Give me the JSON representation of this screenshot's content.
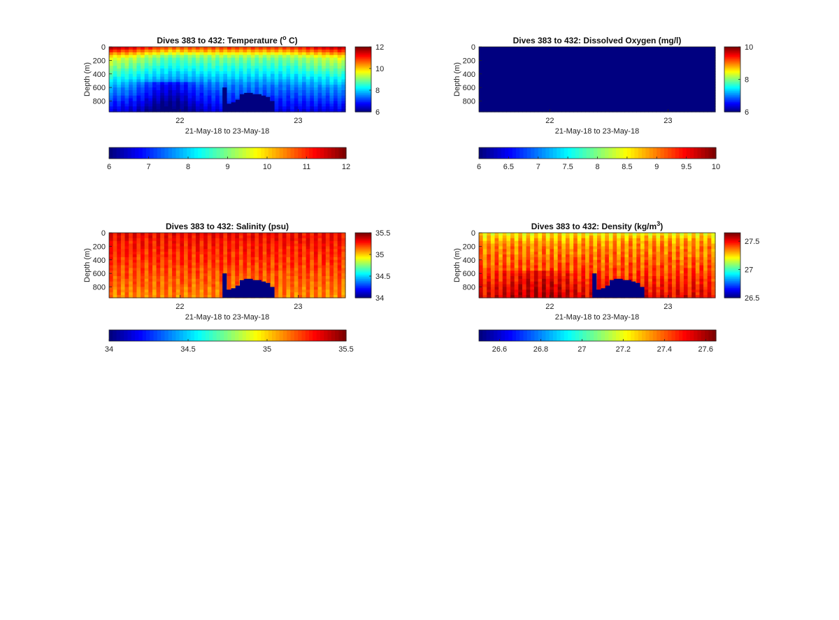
{
  "colormap": "jet",
  "mask_color": "#000080",
  "chart_data": [
    {
      "id": "temperature",
      "type": "heatmap",
      "title": "Dives 383 to 432: Temperature (",
      "title_sup": "o",
      "title_suffix": " C)",
      "xlabel": "21-May-18 to 23-May-18",
      "ylabel": "Depth (m)",
      "x_ticks": [
        "22",
        "23"
      ],
      "y_ticks": [
        "0",
        "200",
        "400",
        "600",
        "800"
      ],
      "ylim": [
        0,
        960
      ],
      "xlim_days": [
        21.4,
        23.4
      ],
      "clim": [
        6,
        12
      ],
      "colorbar_right_ticks": [
        "6",
        "8",
        "10",
        "12"
      ],
      "colorbar_right_values": [
        6,
        8,
        10,
        12
      ],
      "colorbar_bottom_ticks": [
        "6",
        "7",
        "8",
        "9",
        "10",
        "11",
        "12"
      ],
      "colorbar_bottom_values": [
        6,
        7,
        8,
        9,
        10,
        11,
        12
      ],
      "field": {
        "surface": 10.8,
        "mid": 9.0,
        "deep": 7.5,
        "bottom": 6.6,
        "warm_edges": 0.8,
        "stripe": 0.15
      }
    },
    {
      "id": "oxygen",
      "type": "heatmap",
      "title": "Dives 383 to 432: Dissolved Oxygen (mg/l)",
      "title_sup": "",
      "title_suffix": "",
      "xlabel": "21-May-18 to 23-May-18",
      "ylabel": "Depth (m)",
      "x_ticks": [
        "22",
        "23"
      ],
      "y_ticks": [
        "0",
        "200",
        "400",
        "600",
        "800"
      ],
      "ylim": [
        0,
        960
      ],
      "xlim_days": [
        21.4,
        23.4
      ],
      "clim": [
        6,
        10
      ],
      "colorbar_right_ticks": [
        "6",
        "8",
        "10"
      ],
      "colorbar_right_values": [
        6,
        8,
        10
      ],
      "colorbar_bottom_ticks": [
        "6",
        "6.5",
        "7",
        "7.5",
        "8",
        "8.5",
        "9",
        "9.5",
        "10"
      ],
      "colorbar_bottom_values": [
        6,
        6.5,
        7,
        7.5,
        8,
        8.5,
        9,
        9.5,
        10
      ],
      "uniform_value": 6
    },
    {
      "id": "salinity",
      "type": "heatmap",
      "title": "Dives 383 to 432: Salinity (psu)",
      "title_sup": "",
      "title_suffix": "",
      "xlabel": "21-May-18 to 23-May-18",
      "ylabel": "Depth (m)",
      "x_ticks": [
        "22",
        "23"
      ],
      "y_ticks": [
        "0",
        "200",
        "400",
        "600",
        "800"
      ],
      "ylim": [
        0,
        960
      ],
      "xlim_days": [
        21.4,
        23.4
      ],
      "clim": [
        34,
        35.5
      ],
      "colorbar_right_ticks": [
        "34",
        "34.5",
        "35",
        "35.5"
      ],
      "colorbar_right_values": [
        34,
        34.5,
        35,
        35.5
      ],
      "colorbar_bottom_ticks": [
        "34",
        "34.5",
        "35",
        "35.5"
      ],
      "colorbar_bottom_values": [
        34,
        34.5,
        35,
        35.5
      ],
      "field": {
        "surface": 35.32,
        "mid": 35.28,
        "deep": 35.2,
        "bottom": 35.12,
        "warm_edges": 0.0,
        "stripe": 0.06
      }
    },
    {
      "id": "density",
      "type": "heatmap",
      "title": "Dives 383 to 432: Density (kg/m",
      "title_sup": "3",
      "title_suffix": ")",
      "xlabel": "21-May-18 to 23-May-18",
      "ylabel": "Depth (m)",
      "x_ticks": [
        "22",
        "23"
      ],
      "y_ticks": [
        "0",
        "200",
        "400",
        "600",
        "800"
      ],
      "ylim": [
        0,
        960
      ],
      "xlim_days": [
        21.4,
        23.4
      ],
      "clim": [
        26.5,
        27.65
      ],
      "colorbar_right_ticks": [
        "26.5",
        "27",
        "27.5"
      ],
      "colorbar_right_values": [
        26.5,
        27,
        27.5
      ],
      "colorbar_bottom_ticks": [
        "26.6",
        "26.8",
        "27",
        "27.2",
        "27.4",
        "27.6"
      ],
      "colorbar_bottom_values": [
        26.6,
        26.8,
        27,
        27.2,
        27.4,
        27.6
      ],
      "field": {
        "surface": 27.24,
        "mid": 27.34,
        "deep": 27.42,
        "bottom": 27.52,
        "warm_edges": 0.0,
        "stripe": 0.06
      }
    }
  ],
  "masked_region": {
    "description_depths_m": [
      600,
      840,
      820,
      780,
      700,
      680,
      680,
      700,
      700,
      720,
      740,
      800
    ],
    "start_day": 22.36,
    "end_day": 22.8
  }
}
